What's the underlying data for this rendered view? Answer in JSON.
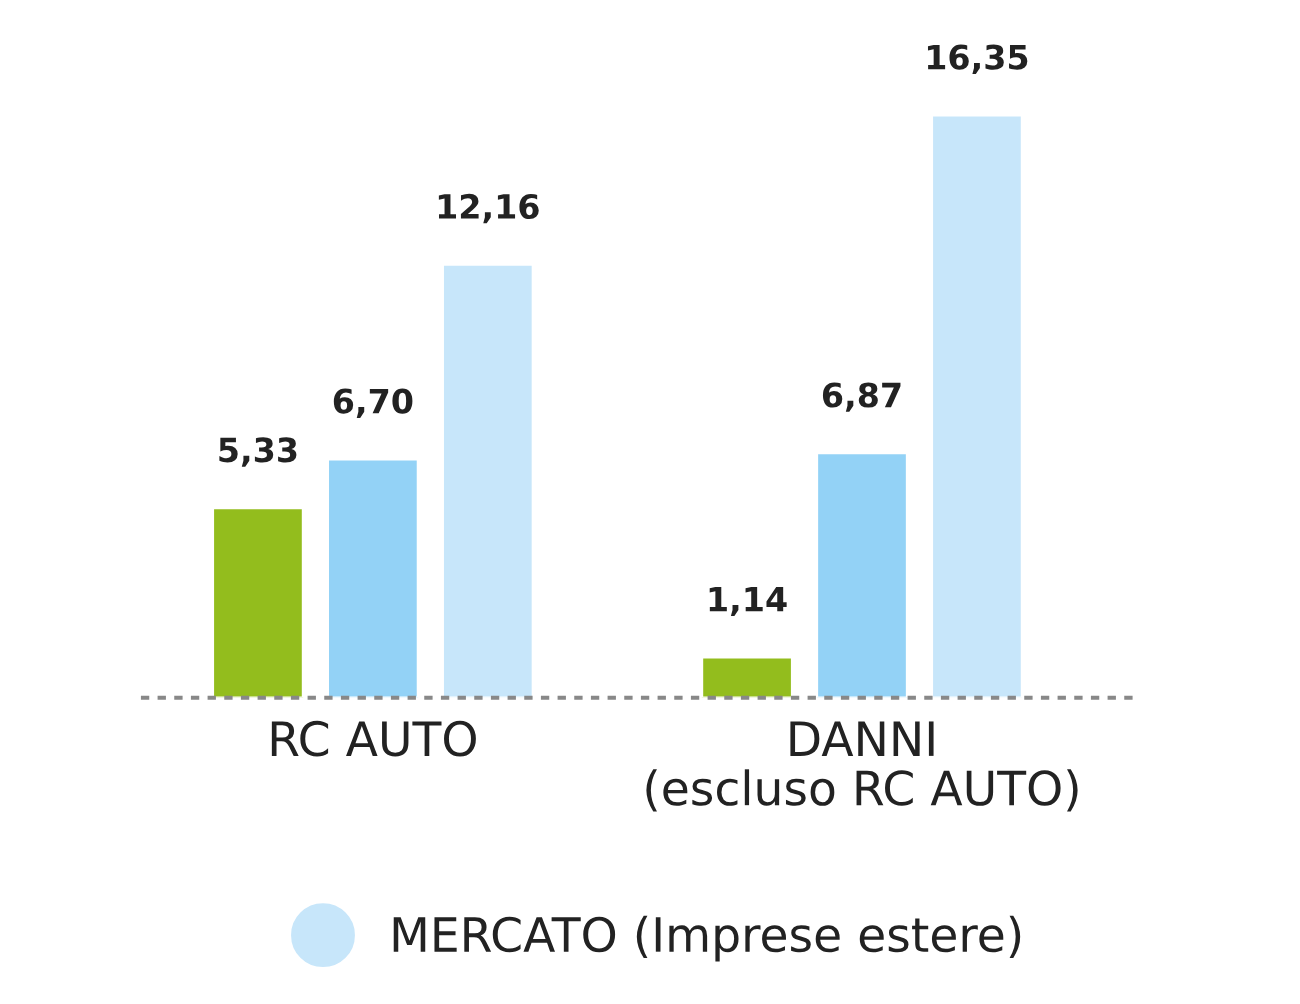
{
  "chart_data": {
    "type": "bar",
    "categories": [
      "RC AUTO",
      "DANNI\n(escluso RC AUTO)"
    ],
    "series": [
      {
        "color": "#93bd1d",
        "values": [
          5.33,
          1.14
        ],
        "value_labels": [
          "5,33",
          "1,14"
        ]
      },
      {
        "color": "#93d2f6",
        "values": [
          6.7,
          6.87
        ],
        "value_labels": [
          "6,70",
          "6,87"
        ]
      },
      {
        "name": "MERCATO (Imprese estere)",
        "color": "#c7e6fa",
        "values": [
          12.16,
          16.35
        ],
        "value_labels": [
          "12,16",
          "16,35"
        ]
      }
    ],
    "legend": "bottom",
    "grid": false
  }
}
